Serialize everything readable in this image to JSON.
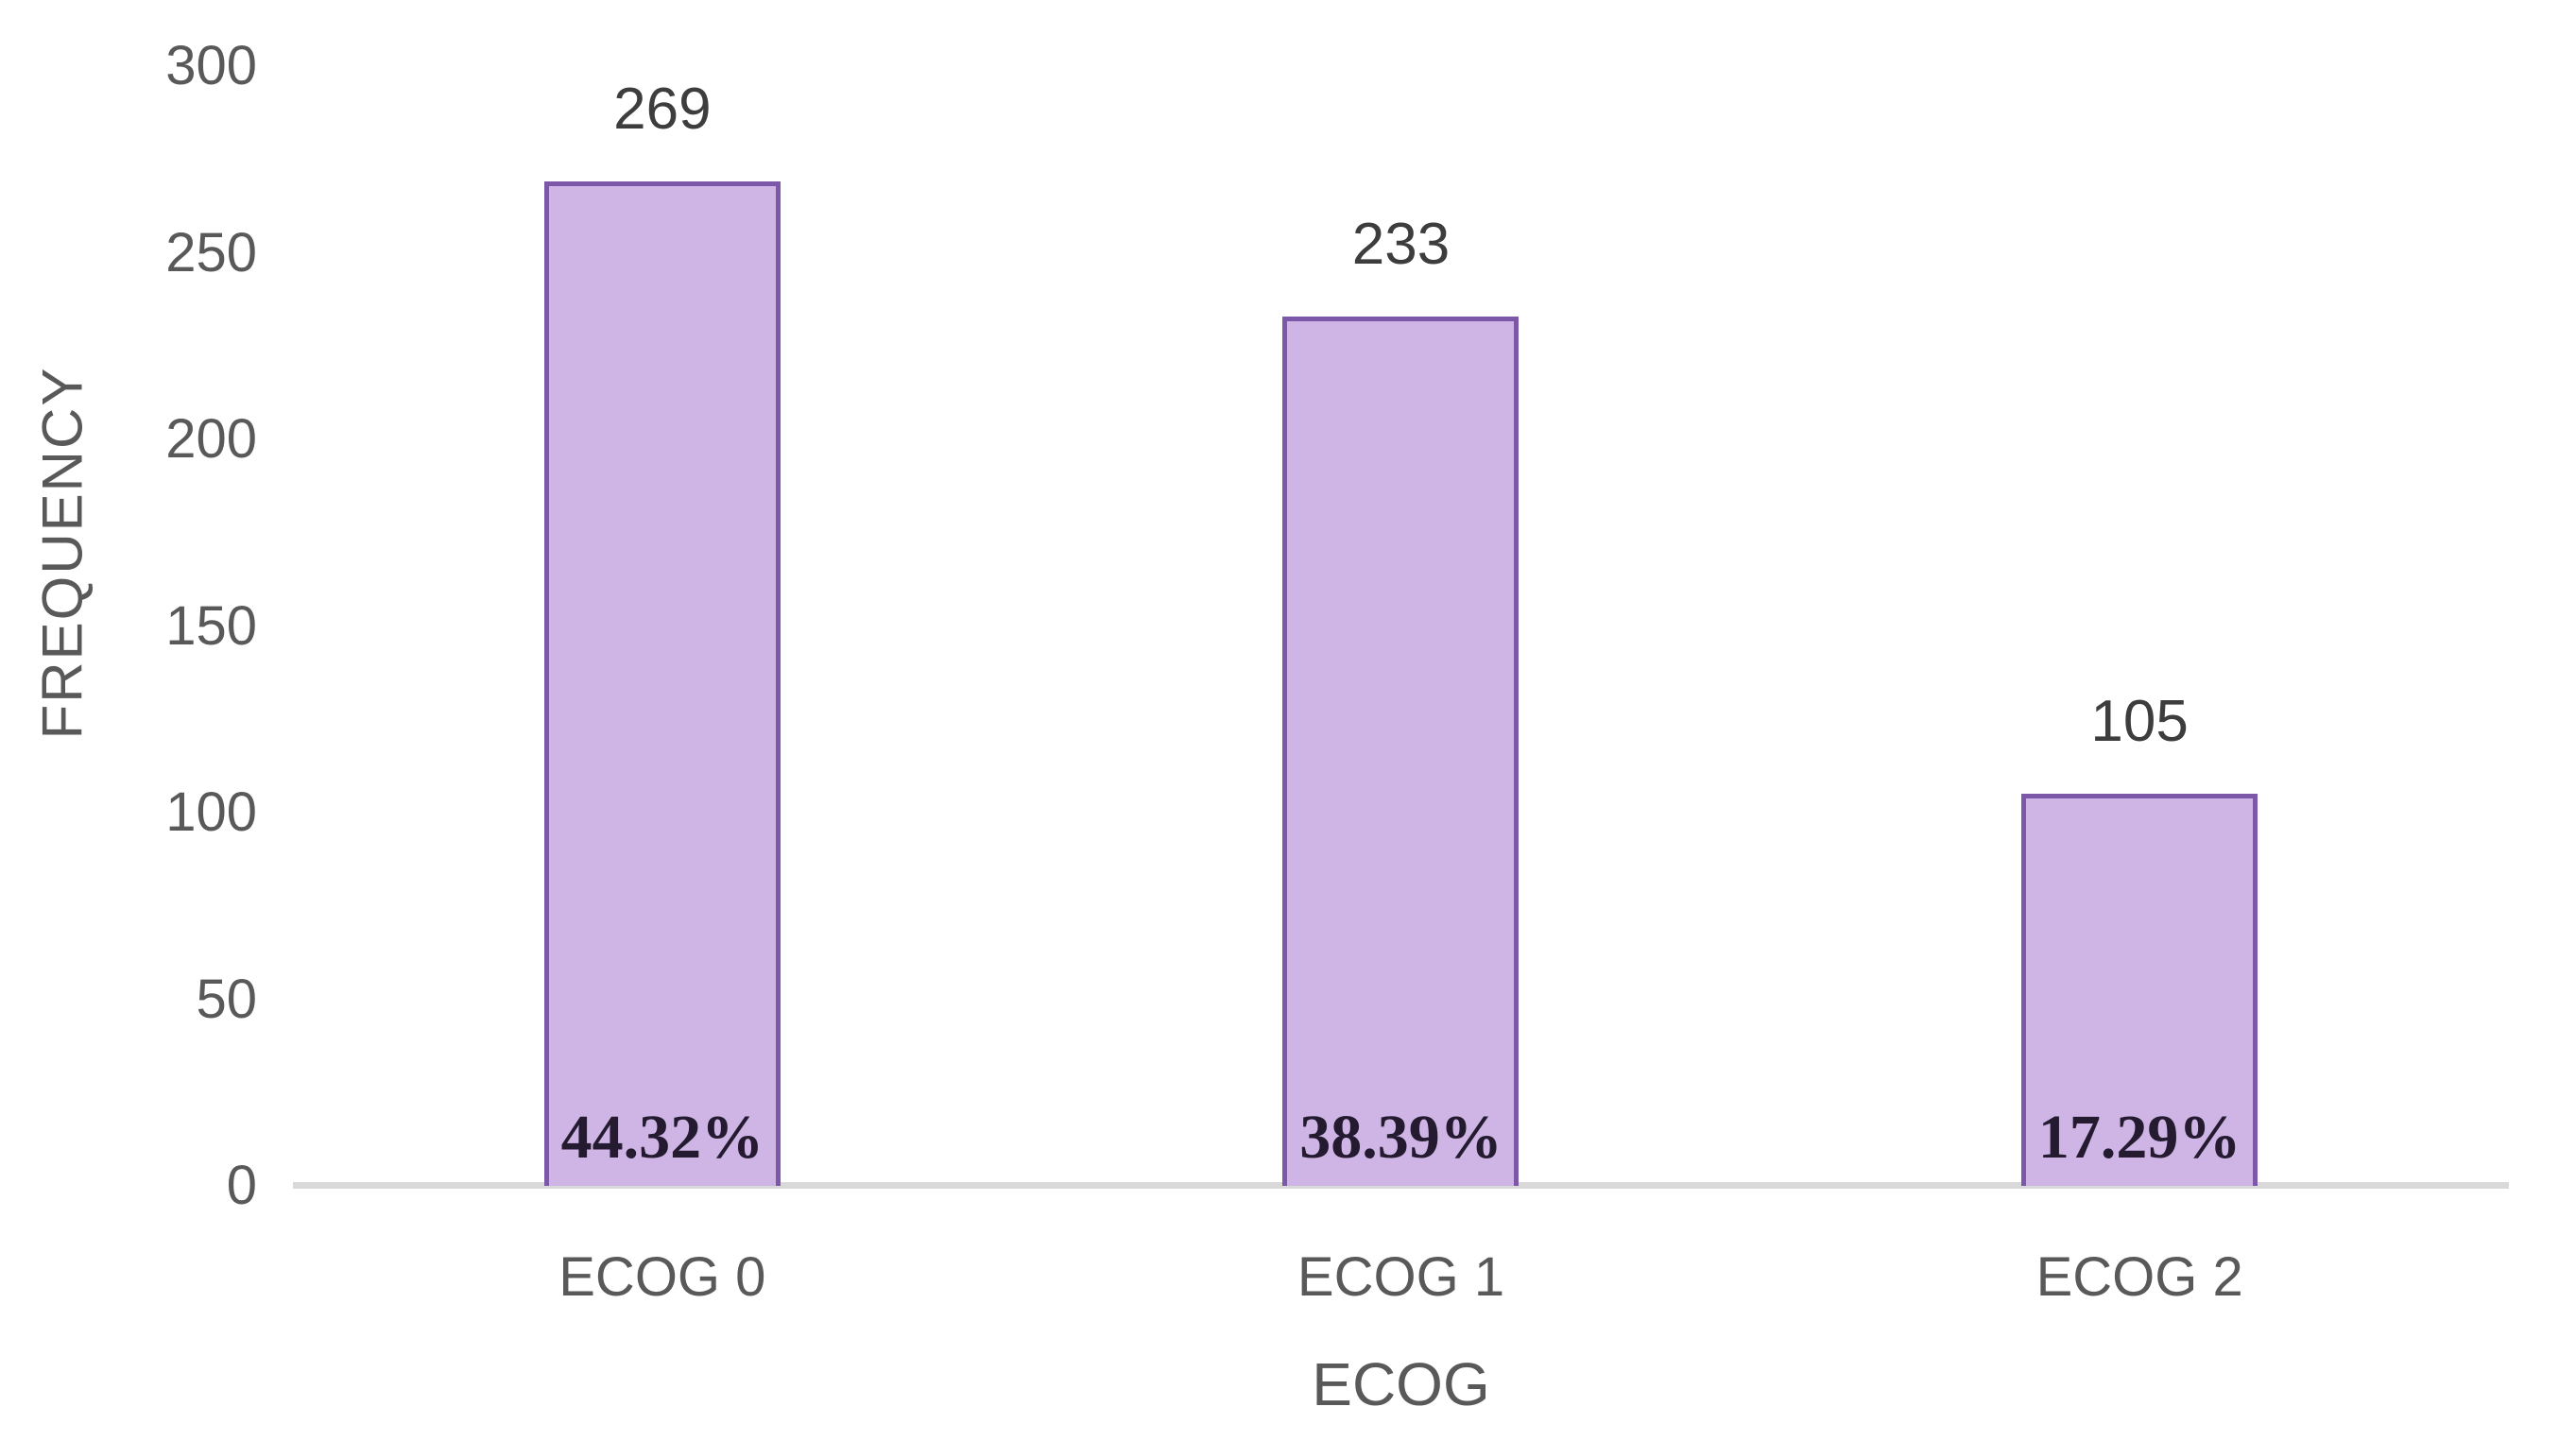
{
  "chart_data": {
    "type": "bar",
    "title": "",
    "xlabel": "ECOG",
    "ylabel": "FREQUENCY",
    "categories": [
      "ECOG 0",
      "ECOG 1",
      "ECOG 2"
    ],
    "values": [
      269,
      233,
      105
    ],
    "value_labels": [
      "269",
      "233",
      "105"
    ],
    "percent_labels": [
      "44.32%",
      "38.39%",
      "17.29%"
    ],
    "ylim": [
      0,
      300
    ],
    "ytick_step": 50,
    "yticks": [
      0,
      50,
      100,
      150,
      200,
      250,
      300
    ],
    "grid": false,
    "legend": "none",
    "colors": {
      "bar_fill": "#cfb5e6",
      "bar_border": "#7d58a8",
      "axis_line": "#d9d9d9",
      "axis_text": "#595959",
      "value_label_text": "#3d3d3d",
      "percent_label_text": "#241b31",
      "background": "#ffffff"
    }
  }
}
